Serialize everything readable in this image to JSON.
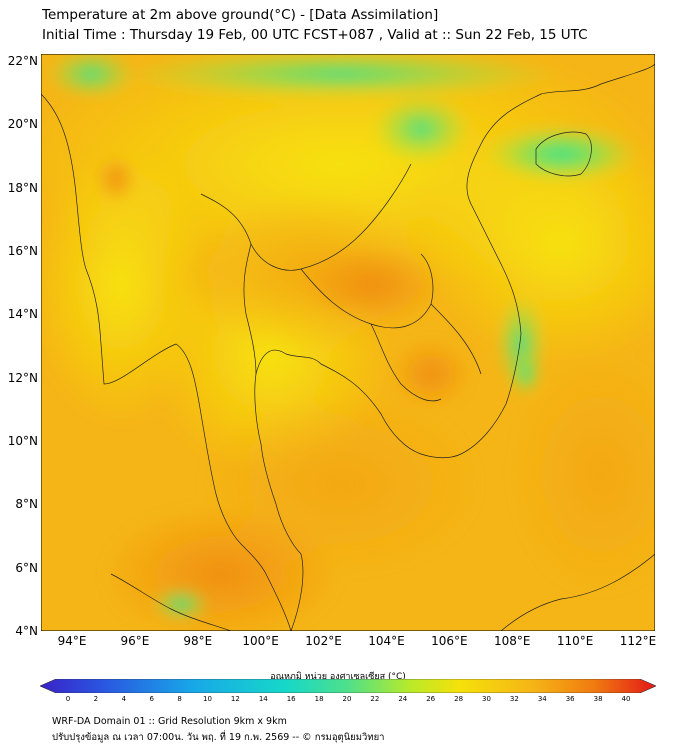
{
  "title": {
    "line1": "Temperature at 2m above ground(°C) - [Data Assimilation]",
    "line2": "Initial Time : Thursday 19 Feb, 00 UTC FCST+087 , Valid at :: Sun 22 Feb, 15 UTC"
  },
  "axes": {
    "lat_labels": [
      "22°N",
      "20°N",
      "18°N",
      "16°N",
      "14°N",
      "12°N",
      "10°N",
      "8°N",
      "6°N",
      "4°N"
    ],
    "lon_labels": [
      "94°E",
      "96°E",
      "98°E",
      "100°E",
      "102°E",
      "104°E",
      "106°E",
      "108°E",
      "110°E",
      "112°E"
    ]
  },
  "colorbar": {
    "title": "อุณหภูมิ หน่วย องศาเซลเซียส (°C)",
    "ticks": [
      "0",
      "2",
      "4",
      "6",
      "8",
      "10",
      "12",
      "14",
      "16",
      "18",
      "20",
      "22",
      "24",
      "26",
      "28",
      "30",
      "32",
      "34",
      "36",
      "38",
      "40"
    ],
    "min": 0,
    "max": 40,
    "colors": {
      "cold": "#3a22c8",
      "cool": "#16c0e0",
      "mild": "#4fe08a",
      "warm": "#f5e10a",
      "hot": "#f28a10",
      "max": "#e41818"
    }
  },
  "footer": {
    "line1": "WRF-DA Domain 01 :: Grid Resolution 9km x 9km",
    "line2": "ปรับปรุงข้อมูล ณ เวลา 07:00น. วัน พฤ. ที่ 19 ก.พ. 2569 -- © กรมอุตุนิยมวิทยา"
  }
}
